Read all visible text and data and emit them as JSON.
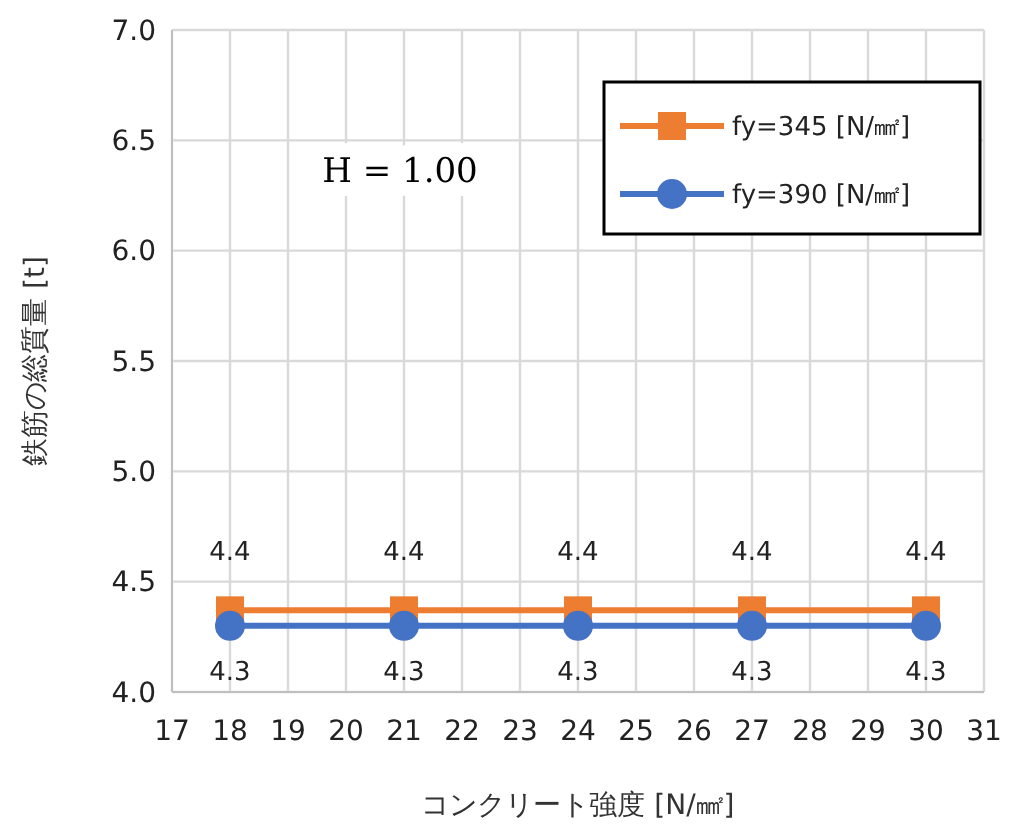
{
  "chart_data": {
    "type": "line",
    "xlabel": "コンクリート強度 [N/㎟]",
    "ylabel": "鉄筋の総質量 [t]",
    "annotations": [
      "H = 1.00"
    ],
    "x": [
      18,
      21,
      24,
      27,
      30
    ],
    "series": [
      {
        "name": "fy=345 [N/㎟]",
        "color": "#ed7d31",
        "marker": "square",
        "values": [
          4.37,
          4.37,
          4.37,
          4.37,
          4.37
        ],
        "value_labels": [
          "4.4",
          "4.4",
          "4.4",
          "4.4",
          "4.4"
        ]
      },
      {
        "name": "fy=390 [N/㎟]",
        "color": "#4472c4",
        "marker": "circle",
        "values": [
          4.3,
          4.3,
          4.3,
          4.3,
          4.3
        ],
        "value_labels": [
          "4.3",
          "4.3",
          "4.3",
          "4.3",
          "4.3"
        ]
      }
    ],
    "xlim": [
      17,
      31
    ],
    "xticks": [
      17,
      18,
      19,
      20,
      21,
      22,
      23,
      24,
      25,
      26,
      27,
      28,
      29,
      30,
      31
    ],
    "ylim": [
      4.0,
      7.0
    ],
    "yticks": [
      {
        "value": 4.0,
        "label": "4.0"
      },
      {
        "value": 4.5,
        "label": "4.5"
      },
      {
        "value": 5.0,
        "label": "5.0"
      },
      {
        "value": 5.5,
        "label": "5.5"
      },
      {
        "value": 6.0,
        "label": "6.0"
      },
      {
        "value": 6.5,
        "label": "6.5"
      },
      {
        "value": 7.0,
        "label": "7.0"
      }
    ],
    "grid": true,
    "legend": "top right",
    "line_style": "solid"
  }
}
